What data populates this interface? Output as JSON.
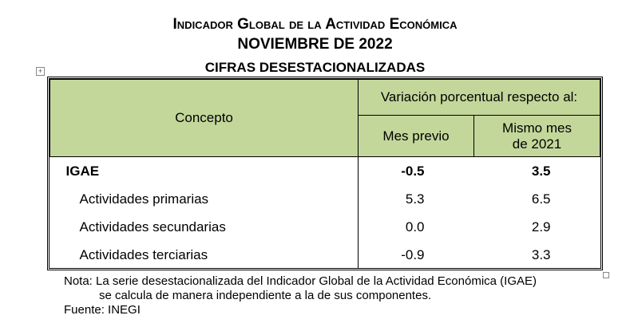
{
  "title": "Indicador Global de la Actividad Económica",
  "subtitle": "NOVIEMBRE DE 2022",
  "subtitle2": "CIFRAS DESESTACIONALIZADAS",
  "table": {
    "col_concept": "Concepto",
    "col_group": "Variación porcentual respecto al:",
    "col_prev": "Mes previo",
    "col_same_1": "Mismo mes",
    "col_same_2": "de 2021",
    "rows": [
      {
        "concept": "IGAE",
        "prev": "-0.5",
        "same": "3.5"
      },
      {
        "concept": "Actividades primarias",
        "prev": "5.3",
        "same": "6.5"
      },
      {
        "concept": "Actividades secundarias",
        "prev": "0.0",
        "same": "2.9"
      },
      {
        "concept": "Actividades terciarias",
        "prev": "-0.9",
        "same": "3.3"
      }
    ]
  },
  "notes": {
    "line1": "Nota: La serie desestacionalizada del Indicador Global de la Actividad Económica (IGAE)",
    "line2": "se calcula de manera independiente a la de sus componentes.",
    "source": "Fuente: INEGI"
  },
  "colors": {
    "header_bg": "#c4d79b"
  }
}
